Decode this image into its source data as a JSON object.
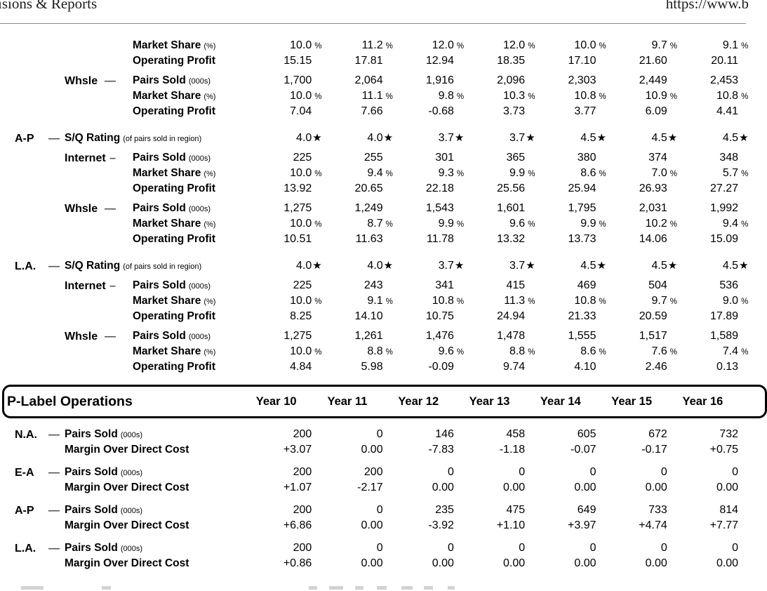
{
  "page_header": {
    "left_fragment": "isions & Reports",
    "right_fragment": "https://www.b"
  },
  "regional_performance": {
    "rows": [
      {
        "label": "Market Share",
        "note": "(%)",
        "suffix": "%",
        "clipped": true,
        "values": [
          "10.0",
          "11.2",
          "12.0",
          "12.0",
          "10.0",
          "9.7",
          "9.1"
        ]
      },
      {
        "label": "Operating Profit",
        "values": [
          "15.15",
          "17.81",
          "12.94",
          "18.35",
          "17.10",
          "21.60",
          "20.11"
        ]
      },
      {
        "channel": "Whsle",
        "channel_dash": "—",
        "gap": "sm",
        "label": "Pairs Sold",
        "note": "(000s)",
        "values": [
          "1,700",
          "2,064",
          "1,916",
          "2,096",
          "2,303",
          "2,449",
          "2,453"
        ]
      },
      {
        "label": "Market Share",
        "note": "(%)",
        "suffix": "%",
        "values": [
          "10.0",
          "11.1",
          "9.8",
          "10.3",
          "10.8",
          "10.9",
          "10.8"
        ]
      },
      {
        "label": "Operating Profit",
        "values": [
          "7.04",
          "7.66",
          "-0.68",
          "3.73",
          "3.77",
          "6.09",
          "4.41"
        ]
      },
      {
        "region": "A-P",
        "region_dash": "—",
        "merged": true,
        "gap": "lg",
        "label": "S/Q Rating",
        "note": "(of pairs sold in region)",
        "suffix": "★",
        "values": [
          "4.0",
          "4.0",
          "3.7",
          "3.7",
          "4.5",
          "4.5",
          "4.5"
        ]
      },
      {
        "channel": "Internet",
        "channel_dash": "–",
        "gap": "sm",
        "label": "Pairs Sold",
        "note": "(000s)",
        "values": [
          "225",
          "255",
          "301",
          "365",
          "380",
          "374",
          "348"
        ]
      },
      {
        "label": "Market Share",
        "note": "(%)",
        "suffix": "%",
        "values": [
          "10.0",
          "9.4",
          "9.3",
          "9.9",
          "8.6",
          "7.0",
          "5.7"
        ]
      },
      {
        "label": "Operating Profit",
        "values": [
          "13.92",
          "20.65",
          "22.18",
          "25.56",
          "25.94",
          "26.93",
          "27.27"
        ]
      },
      {
        "channel": "Whsle",
        "channel_dash": "—",
        "gap": "sm",
        "label": "Pairs Sold",
        "note": "(000s)",
        "values": [
          "1,275",
          "1,249",
          "1,543",
          "1,601",
          "1,795",
          "2,031",
          "1,992"
        ]
      },
      {
        "label": "Market Share",
        "note": "(%)",
        "suffix": "%",
        "values": [
          "10.0",
          "8.7",
          "9.9",
          "9.6",
          "9.9",
          "10.2",
          "9.4"
        ]
      },
      {
        "label": "Operating Profit",
        "values": [
          "10.51",
          "11.63",
          "11.78",
          "13.32",
          "13.73",
          "14.06",
          "15.09"
        ]
      },
      {
        "region": "L.A.",
        "region_dash": "—",
        "merged": true,
        "gap": "lg",
        "label": "S/Q Rating",
        "note": "(of pairs sold in region)",
        "suffix": "★",
        "values": [
          "4.0",
          "4.0",
          "3.7",
          "3.7",
          "4.5",
          "4.5",
          "4.5"
        ]
      },
      {
        "channel": "Internet",
        "channel_dash": "–",
        "gap": "sm",
        "label": "Pairs Sold",
        "note": "(000s)",
        "values": [
          "225",
          "243",
          "341",
          "415",
          "469",
          "504",
          "536"
        ]
      },
      {
        "label": "Market Share",
        "note": "(%)",
        "suffix": "%",
        "values": [
          "10.0",
          "9.1",
          "10.8",
          "11.3",
          "10.8",
          "9.7",
          "9.0"
        ]
      },
      {
        "label": "Operating Profit",
        "values": [
          "8.25",
          "14.10",
          "10.75",
          "24.94",
          "21.33",
          "20.59",
          "17.89"
        ]
      },
      {
        "channel": "Whsle",
        "channel_dash": "—",
        "gap": "sm",
        "label": "Pairs Sold",
        "note": "(000s)",
        "values": [
          "1,275",
          "1,261",
          "1,476",
          "1,478",
          "1,555",
          "1,517",
          "1,589"
        ]
      },
      {
        "label": "Market Share",
        "note": "(%)",
        "suffix": "%",
        "values": [
          "10.0",
          "8.8",
          "9.6",
          "8.8",
          "8.6",
          "7.6",
          "7.4"
        ]
      },
      {
        "label": "Operating Profit",
        "values": [
          "4.84",
          "5.98",
          "-0.09",
          "9.74",
          "4.10",
          "2.46",
          "0.13"
        ]
      }
    ]
  },
  "plabel_operations": {
    "title": "P-Label Operations",
    "year_headers": [
      "Year 10",
      "Year 11",
      "Year 12",
      "Year 13",
      "Year 14",
      "Year 15",
      "Year 16"
    ],
    "rows": [
      {
        "region": "N.A.",
        "region_dash": "—",
        "merged": true,
        "gap": "md",
        "label": "Pairs Sold",
        "note": "(000s)",
        "values": [
          "200",
          "0",
          "146",
          "458",
          "605",
          "672",
          "732"
        ]
      },
      {
        "merged": true,
        "label": "Margin Over Direct Cost",
        "values": [
          "+3.07",
          "0.00",
          "-7.83",
          "-1.18",
          "-0.07",
          "-0.17",
          "+0.75"
        ]
      },
      {
        "region": "E-A",
        "region_dash": "—",
        "merged": true,
        "gap": "md",
        "label": "Pairs Sold",
        "note": "(000s)",
        "values": [
          "200",
          "200",
          "0",
          "0",
          "0",
          "0",
          "0"
        ]
      },
      {
        "merged": true,
        "label": "Margin Over Direct Cost",
        "values": [
          "+1.07",
          "-2.17",
          "0.00",
          "0.00",
          "0.00",
          "0.00",
          "0.00"
        ]
      },
      {
        "region": "A-P",
        "region_dash": "—",
        "merged": true,
        "gap": "md",
        "label": "Pairs Sold",
        "note": "(000s)",
        "values": [
          "200",
          "0",
          "235",
          "475",
          "649",
          "733",
          "814"
        ]
      },
      {
        "merged": true,
        "label": "Margin Over Direct Cost",
        "values": [
          "+6.86",
          "0.00",
          "-3.92",
          "+1.10",
          "+3.97",
          "+4.74",
          "+7.77"
        ]
      },
      {
        "region": "L.A.",
        "region_dash": "—",
        "merged": true,
        "gap": "md",
        "label": "Pairs Sold",
        "note": "(000s)",
        "values": [
          "200",
          "0",
          "0",
          "0",
          "0",
          "0",
          "0"
        ]
      },
      {
        "merged": true,
        "label": "Margin Over Direct Cost",
        "values": [
          "+0.86",
          "0.00",
          "0.00",
          "0.00",
          "0.00",
          "0.00",
          "0.00"
        ]
      }
    ]
  }
}
